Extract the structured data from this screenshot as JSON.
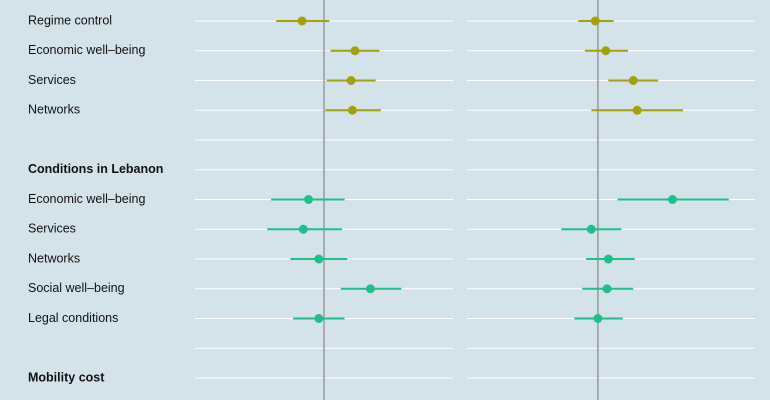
{
  "chart_data": {
    "type": "coefplot",
    "categories": [
      "Regime control",
      "Economic well–being",
      "Services",
      "Networks",
      null,
      "Conditions in Lebanon",
      "Economic well–being",
      "Services",
      "Networks",
      "Social well–being",
      "Legal conditions",
      null,
      "Mobility cost"
    ],
    "refline": 0,
    "panels": [
      {
        "xlim": [
          -1,
          1
        ],
        "series": [
          {
            "color": "#a3a10e",
            "values": [
              -0.17,
              0.24,
              0.21,
              0.22,
              null,
              null,
              null,
              null,
              null,
              null,
              null,
              null,
              null
            ],
            "lower": [
              -0.37,
              0.05,
              0.02,
              0.01,
              null,
              null,
              null,
              null,
              null,
              null,
              null,
              null,
              null
            ],
            "upper": [
              0.04,
              0.43,
              0.4,
              0.44,
              null,
              null,
              null,
              null,
              null,
              null,
              null,
              null,
              null
            ]
          },
          {
            "color": "#1fbf8c",
            "values": [
              null,
              null,
              null,
              null,
              null,
              null,
              -0.12,
              -0.16,
              -0.04,
              0.36,
              -0.04,
              null,
              null
            ],
            "lower": [
              null,
              null,
              null,
              null,
              null,
              null,
              -0.41,
              -0.44,
              -0.26,
              0.13,
              -0.24,
              null,
              null
            ],
            "upper": [
              null,
              null,
              null,
              null,
              null,
              null,
              0.16,
              0.14,
              0.18,
              0.6,
              0.16,
              null,
              null
            ]
          }
        ]
      },
      {
        "xlim": [
          -1,
          1.2
        ],
        "series": [
          {
            "color": "#a3a10e",
            "values": [
              -0.02,
              0.06,
              0.27,
              0.3,
              null,
              null,
              null,
              null,
              null,
              null,
              null,
              null,
              null
            ],
            "lower": [
              -0.15,
              -0.1,
              0.08,
              -0.05,
              null,
              null,
              null,
              null,
              null,
              null,
              null,
              null,
              null
            ],
            "upper": [
              0.12,
              0.23,
              0.46,
              0.65,
              null,
              null,
              null,
              null,
              null,
              null,
              null,
              null,
              null
            ]
          },
          {
            "color": "#1fbf8c",
            "values": [
              null,
              null,
              null,
              null,
              null,
              null,
              0.57,
              -0.05,
              0.08,
              0.07,
              0.0,
              null,
              null
            ],
            "lower": [
              null,
              null,
              null,
              null,
              null,
              null,
              0.15,
              -0.28,
              -0.09,
              -0.12,
              -0.18,
              null,
              null
            ],
            "upper": [
              null,
              null,
              null,
              null,
              null,
              null,
              1.0,
              0.18,
              0.28,
              0.27,
              0.19,
              null,
              null
            ]
          }
        ]
      }
    ]
  }
}
